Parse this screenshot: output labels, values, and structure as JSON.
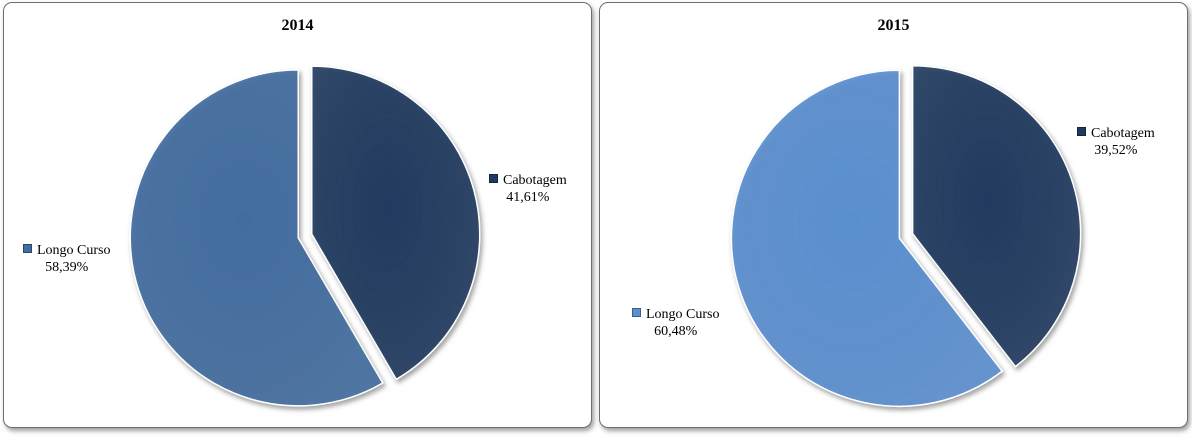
{
  "chart_data": [
    {
      "type": "pie",
      "title": "2014",
      "slices": [
        {
          "label": "Cabotagem",
          "value": 41.61,
          "value_label": "41,61%",
          "color": "#1f3a5f"
        },
        {
          "label": "Longo Curso",
          "value": 58.39,
          "value_label": "58,39%",
          "color": "#426d9f"
        }
      ]
    },
    {
      "type": "pie",
      "title": "2015",
      "slices": [
        {
          "label": "Cabotagem",
          "value": 39.52,
          "value_label": "39,52%",
          "color": "#1f3a5f"
        },
        {
          "label": "Longo Curso",
          "value": 60.48,
          "value_label": "60,48%",
          "color": "#5b8fcf"
        }
      ]
    }
  ]
}
